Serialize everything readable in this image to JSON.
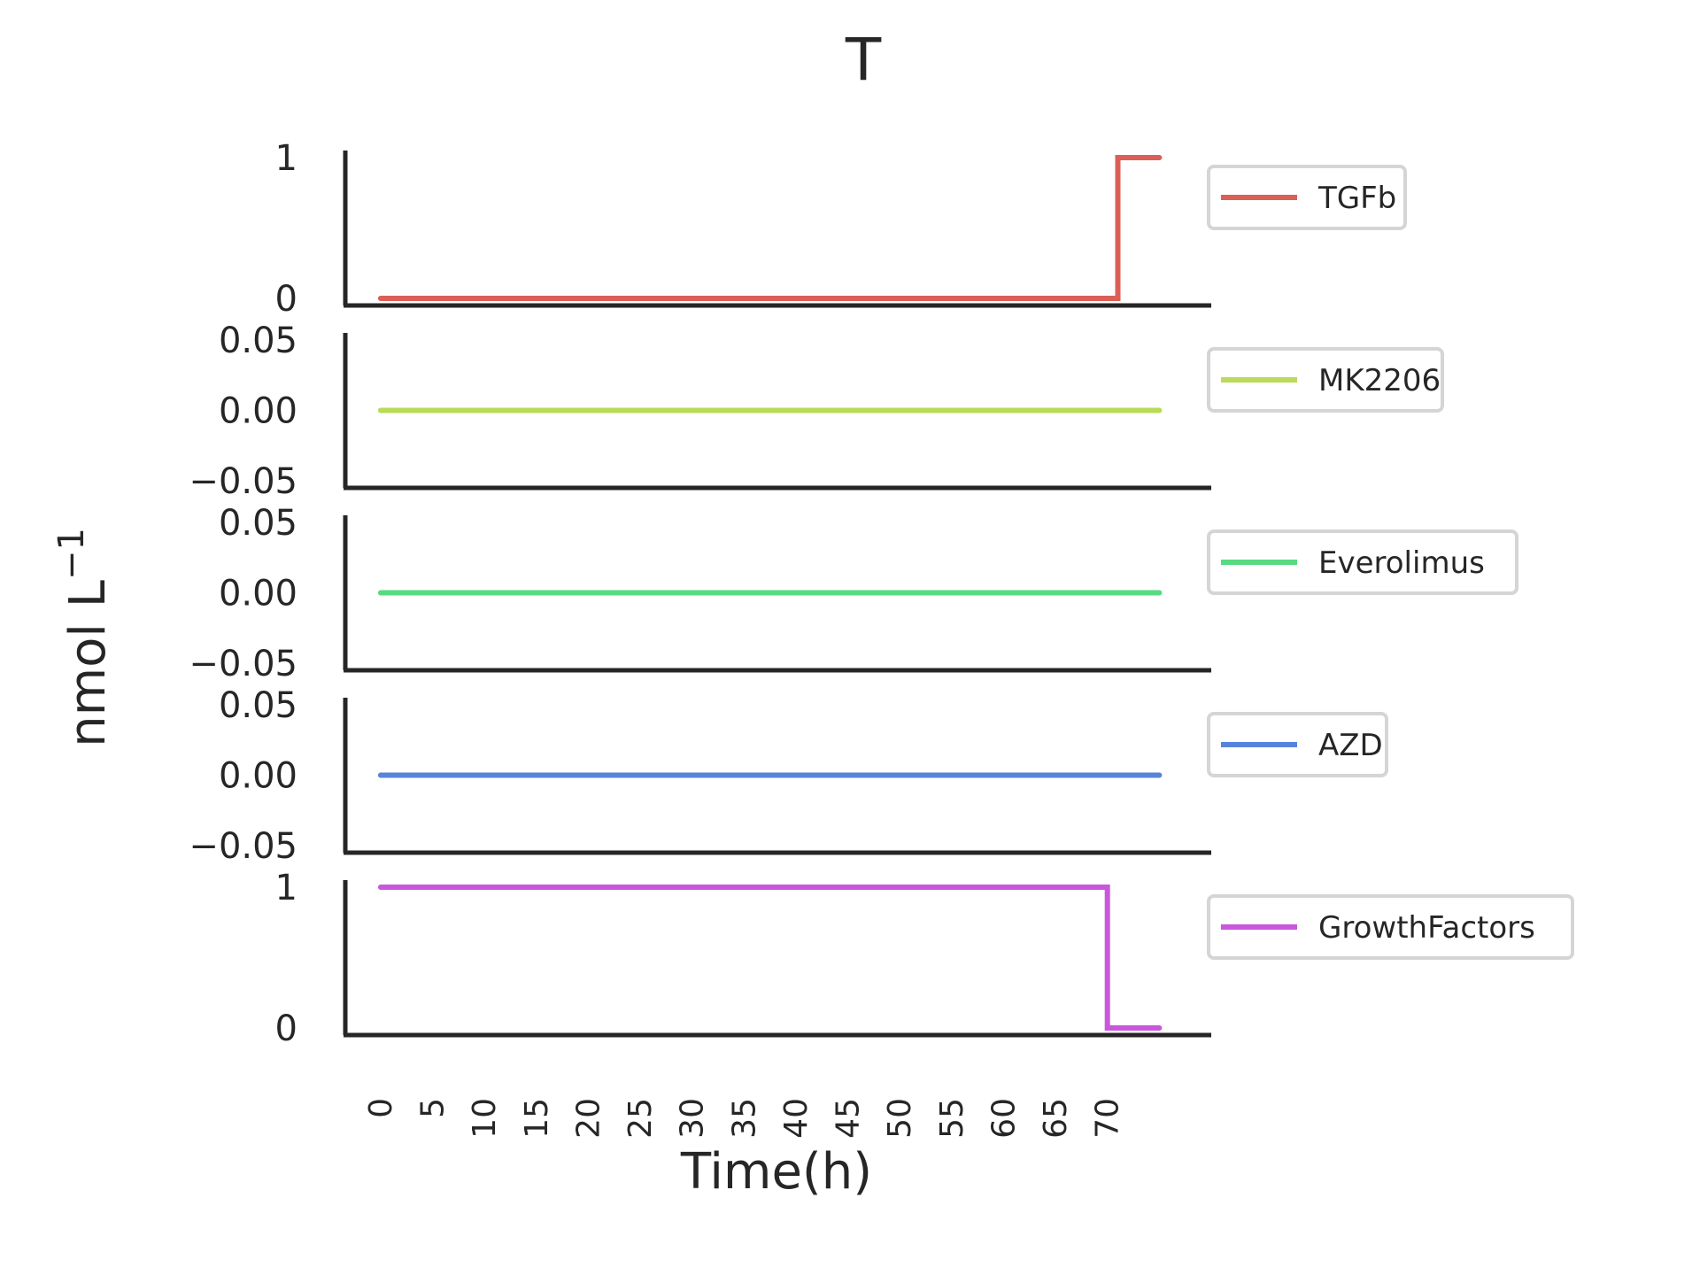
{
  "chart_data": {
    "type": "line",
    "title": "T",
    "xlabel": "Time(h)",
    "ylabel": "nmol L",
    "ylabel_superscript": "−1",
    "xlim": [
      -3.4,
      80
    ],
    "xticks": [
      "0",
      "5",
      "10",
      "15",
      "20",
      "25",
      "30",
      "35",
      "40",
      "45",
      "50",
      "55",
      "60",
      "65",
      "70"
    ],
    "grid": false,
    "legend_placement": "right of each panel",
    "panels": [
      {
        "name": "TGFb",
        "color": "#db5f57",
        "ylim": [
          -0.05,
          1.05
        ],
        "yticks": [
          "0",
          "1"
        ],
        "ytick_values": [
          0,
          1
        ],
        "x": [
          0,
          71,
          71,
          75
        ],
        "y": [
          0,
          0,
          1,
          1
        ]
      },
      {
        "name": "MK2206",
        "color": "#b9db57",
        "ylim": [
          -0.055,
          0.055
        ],
        "yticks": [
          "−0.05",
          "0.00",
          "0.05"
        ],
        "ytick_values": [
          -0.05,
          0,
          0.05
        ],
        "x": [
          0,
          75
        ],
        "y": [
          0,
          0
        ]
      },
      {
        "name": "Everolimus",
        "color": "#57db80",
        "ylim": [
          -0.055,
          0.055
        ],
        "yticks": [
          "−0.05",
          "0.00",
          "0.05"
        ],
        "ytick_values": [
          -0.05,
          0,
          0.05
        ],
        "x": [
          0,
          75
        ],
        "y": [
          0,
          0
        ]
      },
      {
        "name": "AZD",
        "color": "#5784db",
        "ylim": [
          -0.055,
          0.055
        ],
        "yticks": [
          "−0.05",
          "0.00",
          "0.05"
        ],
        "ytick_values": [
          -0.05,
          0,
          0.05
        ],
        "x": [
          0,
          75
        ],
        "y": [
          0,
          0
        ]
      },
      {
        "name": "GrowthFactors",
        "color": "#c957db",
        "ylim": [
          -0.05,
          1.05
        ],
        "yticks": [
          "0",
          "1"
        ],
        "ytick_values": [
          0,
          1
        ],
        "x": [
          0,
          70,
          70,
          75
        ],
        "y": [
          1,
          1,
          0,
          0
        ]
      }
    ]
  }
}
